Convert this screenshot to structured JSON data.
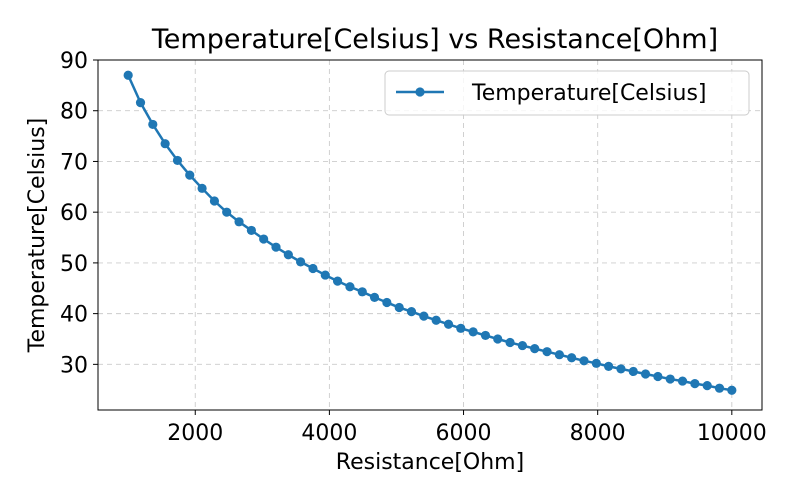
{
  "chart_data": {
    "type": "line",
    "title": "Temperature[Celsius] vs Resistance[Ohm]",
    "xlabel": "Resistance[Ohm]",
    "ylabel": "Temperature[Celsius]",
    "xlim": [
      550,
      10450
    ],
    "ylim": [
      21,
      90
    ],
    "xticks": [
      2000,
      4000,
      6000,
      8000,
      10000
    ],
    "xtick_labels": [
      "2000",
      "4000",
      "6000",
      "8000",
      "10000"
    ],
    "yticks": [
      30,
      40,
      50,
      60,
      70,
      80,
      90
    ],
    "ytick_labels": [
      "30",
      "40",
      "50",
      "60",
      "70",
      "80",
      "90"
    ],
    "grid": true,
    "legend_position": "top-right",
    "series": [
      {
        "name": "Temperature[Celsius]",
        "color": "#1f77b4",
        "marker": "circle",
        "x": [
          1000,
          1184,
          1367,
          1551,
          1735,
          1918,
          2102,
          2286,
          2469,
          2653,
          2837,
          3020,
          3204,
          3388,
          3571,
          3755,
          3939,
          4122,
          4306,
          4490,
          4673,
          4857,
          5041,
          5224,
          5408,
          5592,
          5776,
          5959,
          6143,
          6327,
          6510,
          6694,
          6878,
          7061,
          7245,
          7429,
          7612,
          7796,
          7980,
          8163,
          8347,
          8531,
          8714,
          8898,
          9082,
          9265,
          9449,
          9633,
          9816,
          10000
        ],
        "y": [
          87.0,
          81.6,
          77.3,
          73.5,
          70.2,
          67.3,
          64.7,
          62.2,
          60.0,
          58.1,
          56.4,
          54.7,
          53.1,
          51.6,
          50.2,
          48.9,
          47.6,
          46.4,
          45.3,
          44.3,
          43.2,
          42.2,
          41.2,
          40.4,
          39.5,
          38.7,
          37.9,
          37.1,
          36.4,
          35.7,
          35.0,
          34.3,
          33.7,
          33.1,
          32.5,
          31.9,
          31.3,
          30.7,
          30.2,
          29.6,
          29.1,
          28.6,
          28.1,
          27.6,
          27.1,
          26.7,
          26.2,
          25.8,
          25.3,
          24.9
        ]
      }
    ]
  }
}
